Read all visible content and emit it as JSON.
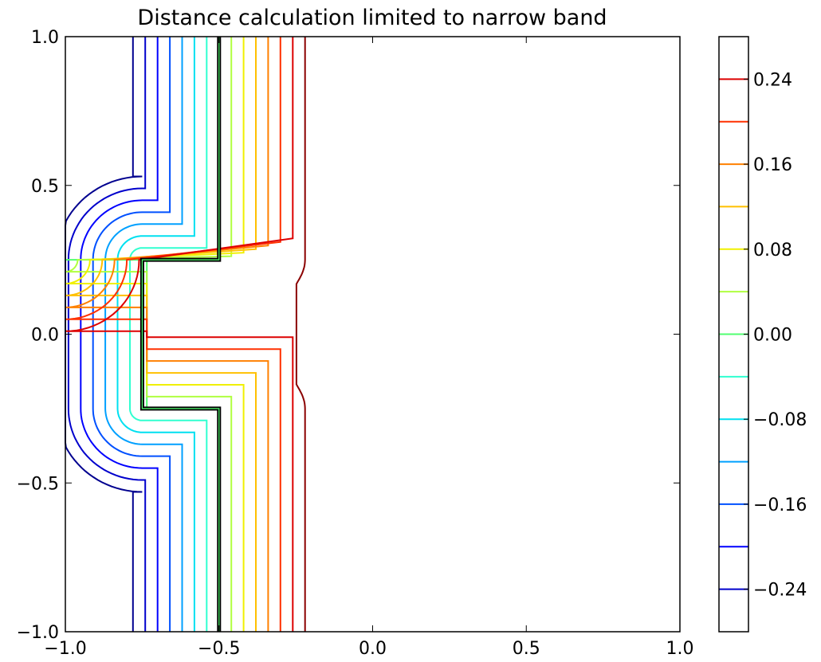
{
  "chart_data": {
    "type": "contour",
    "title": "Distance calculation limited to narrow band",
    "xlabel": "",
    "ylabel": "",
    "xlim": [
      -1.0,
      1.0
    ],
    "ylim": [
      -1.0,
      1.0
    ],
    "xticks": [
      {
        "value": -1.0,
        "label": "−1.0"
      },
      {
        "value": -0.5,
        "label": "−0.5"
      },
      {
        "value": 0.0,
        "label": "0.0"
      },
      {
        "value": 0.5,
        "label": "0.5"
      },
      {
        "value": 1.0,
        "label": "1.0"
      }
    ],
    "yticks": [
      {
        "value": -1.0,
        "label": "−1.0"
      },
      {
        "value": -0.5,
        "label": "−0.5"
      },
      {
        "value": 0.0,
        "label": "0.0"
      },
      {
        "value": 0.5,
        "label": "0.5"
      },
      {
        "value": 1.0,
        "label": "1.0"
      }
    ],
    "zero_contour": {
      "description": "thick black boundary",
      "points": [
        [
          -0.5,
          1.0
        ],
        [
          -0.5,
          0.25
        ],
        [
          -0.75,
          0.25
        ],
        [
          -0.75,
          -0.25
        ],
        [
          -0.5,
          -0.25
        ],
        [
          -0.5,
          -1.0
        ]
      ],
      "color": "#000000"
    },
    "levels": [
      {
        "value": -0.28,
        "color": "#00008f"
      },
      {
        "value": -0.24,
        "color": "#0000cc"
      },
      {
        "value": -0.2,
        "color": "#0000ff"
      },
      {
        "value": -0.16,
        "color": "#0050ff"
      },
      {
        "value": -0.12,
        "color": "#00a0ff"
      },
      {
        "value": -0.08,
        "color": "#00e0f0"
      },
      {
        "value": -0.04,
        "color": "#30ffd0"
      },
      {
        "value": 0.0,
        "color": "#50ff70"
      },
      {
        "value": 0.04,
        "color": "#b0ff40"
      },
      {
        "value": 0.08,
        "color": "#f0f000"
      },
      {
        "value": 0.12,
        "color": "#ffc000"
      },
      {
        "value": 0.16,
        "color": "#ff8000"
      },
      {
        "value": 0.2,
        "color": "#ff3000"
      },
      {
        "value": 0.24,
        "color": "#dd0000"
      },
      {
        "value": 0.28,
        "color": "#8b0000"
      }
    ],
    "colorbar": {
      "range": [
        -0.28,
        0.28
      ],
      "ticks": [
        {
          "value": 0.24,
          "label": "0.24"
        },
        {
          "value": 0.16,
          "label": "0.16"
        },
        {
          "value": 0.08,
          "label": "0.08"
        },
        {
          "value": 0.0,
          "label": "0.00"
        },
        {
          "value": -0.08,
          "label": "−0.08"
        },
        {
          "value": -0.16,
          "label": "−0.16"
        },
        {
          "value": -0.24,
          "label": "−0.24"
        }
      ]
    }
  }
}
